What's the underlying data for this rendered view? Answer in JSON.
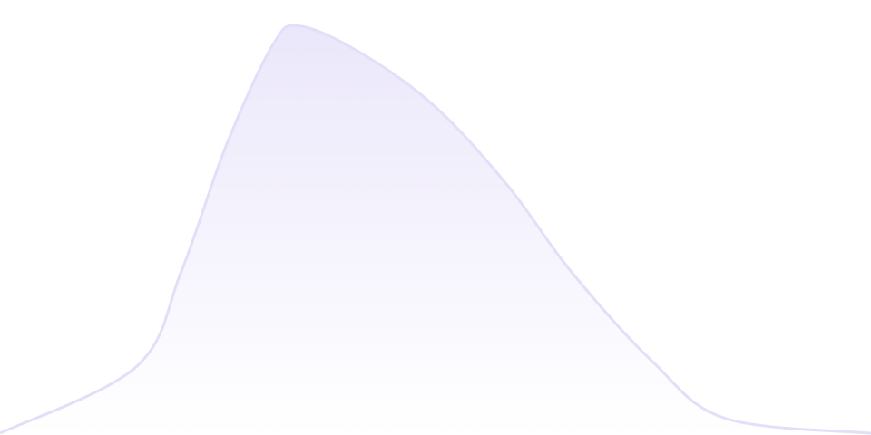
{
  "chart_data": {
    "type": "area",
    "title": "",
    "xlabel": "",
    "ylabel": "",
    "xlim": [
      0,
      100
    ],
    "ylim": [
      0,
      100
    ],
    "grid": false,
    "legend": "none",
    "x": [
      0,
      15.6,
      20.8,
      26,
      31.3,
      34.4,
      41.7,
      50,
      58.3,
      65.6,
      75,
      83.3,
      100
    ],
    "series": [
      {
        "values": [
          0.4,
          15.6,
          37.5,
          66.7,
          89.6,
          94,
          87.5,
          75.4,
          57.3,
          37.5,
          16.7,
          3.8,
          0.4
        ]
      }
    ],
    "colors": {
      "line": "#e2dff8",
      "fill_top": "#ebe7fb",
      "fill_bottom": "#ffffff"
    }
  }
}
